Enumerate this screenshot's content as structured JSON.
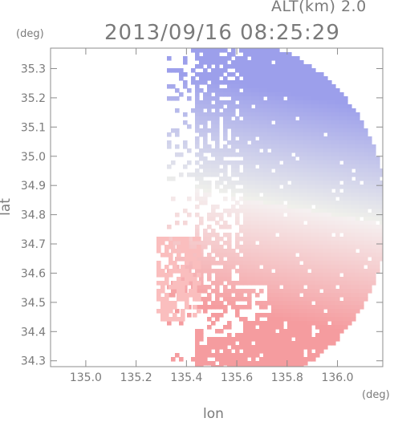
{
  "header": {
    "altitude_label": "ALT(km) 2.0",
    "timestamp": "2013/09/16 08:25:29"
  },
  "chart_data": {
    "type": "heatmap",
    "title": "2013/09/16 08:25:29",
    "xlabel": "lon",
    "ylabel": "lat",
    "x_unit": "(deg)",
    "y_unit": "(deg)",
    "xlim": [
      134.86,
      136.18
    ],
    "ylim": [
      34.28,
      35.37
    ],
    "x_ticks": [
      135.0,
      135.2,
      135.4,
      135.6,
      135.8,
      136.0
    ],
    "x_tick_labels": [
      "135.0",
      "135.2",
      "135.4",
      "135.6",
      "135.8",
      "136.0"
    ],
    "y_ticks": [
      34.3,
      34.4,
      34.5,
      34.6,
      34.7,
      34.8,
      34.9,
      35.0,
      35.1,
      35.2,
      35.3
    ],
    "y_tick_labels": [
      "34.3",
      "34.4",
      "34.5",
      "34.6",
      "34.7",
      "34.8",
      "34.9",
      "35.0",
      "35.1",
      "35.2",
      "35.3"
    ],
    "radar_center": {
      "lon": 135.53,
      "lat": 34.81
    },
    "radar_range_deg": {
      "lon": 0.66,
      "lat": 0.6
    },
    "grid": false,
    "colors": {
      "approaching": "#6e6ee6",
      "receding": "#f06a6a",
      "neutral": "#ffffff",
      "axis": "#8c8c8c"
    },
    "note_colors": "blue = negative radial velocity (north sector), red = positive (south sector)"
  }
}
